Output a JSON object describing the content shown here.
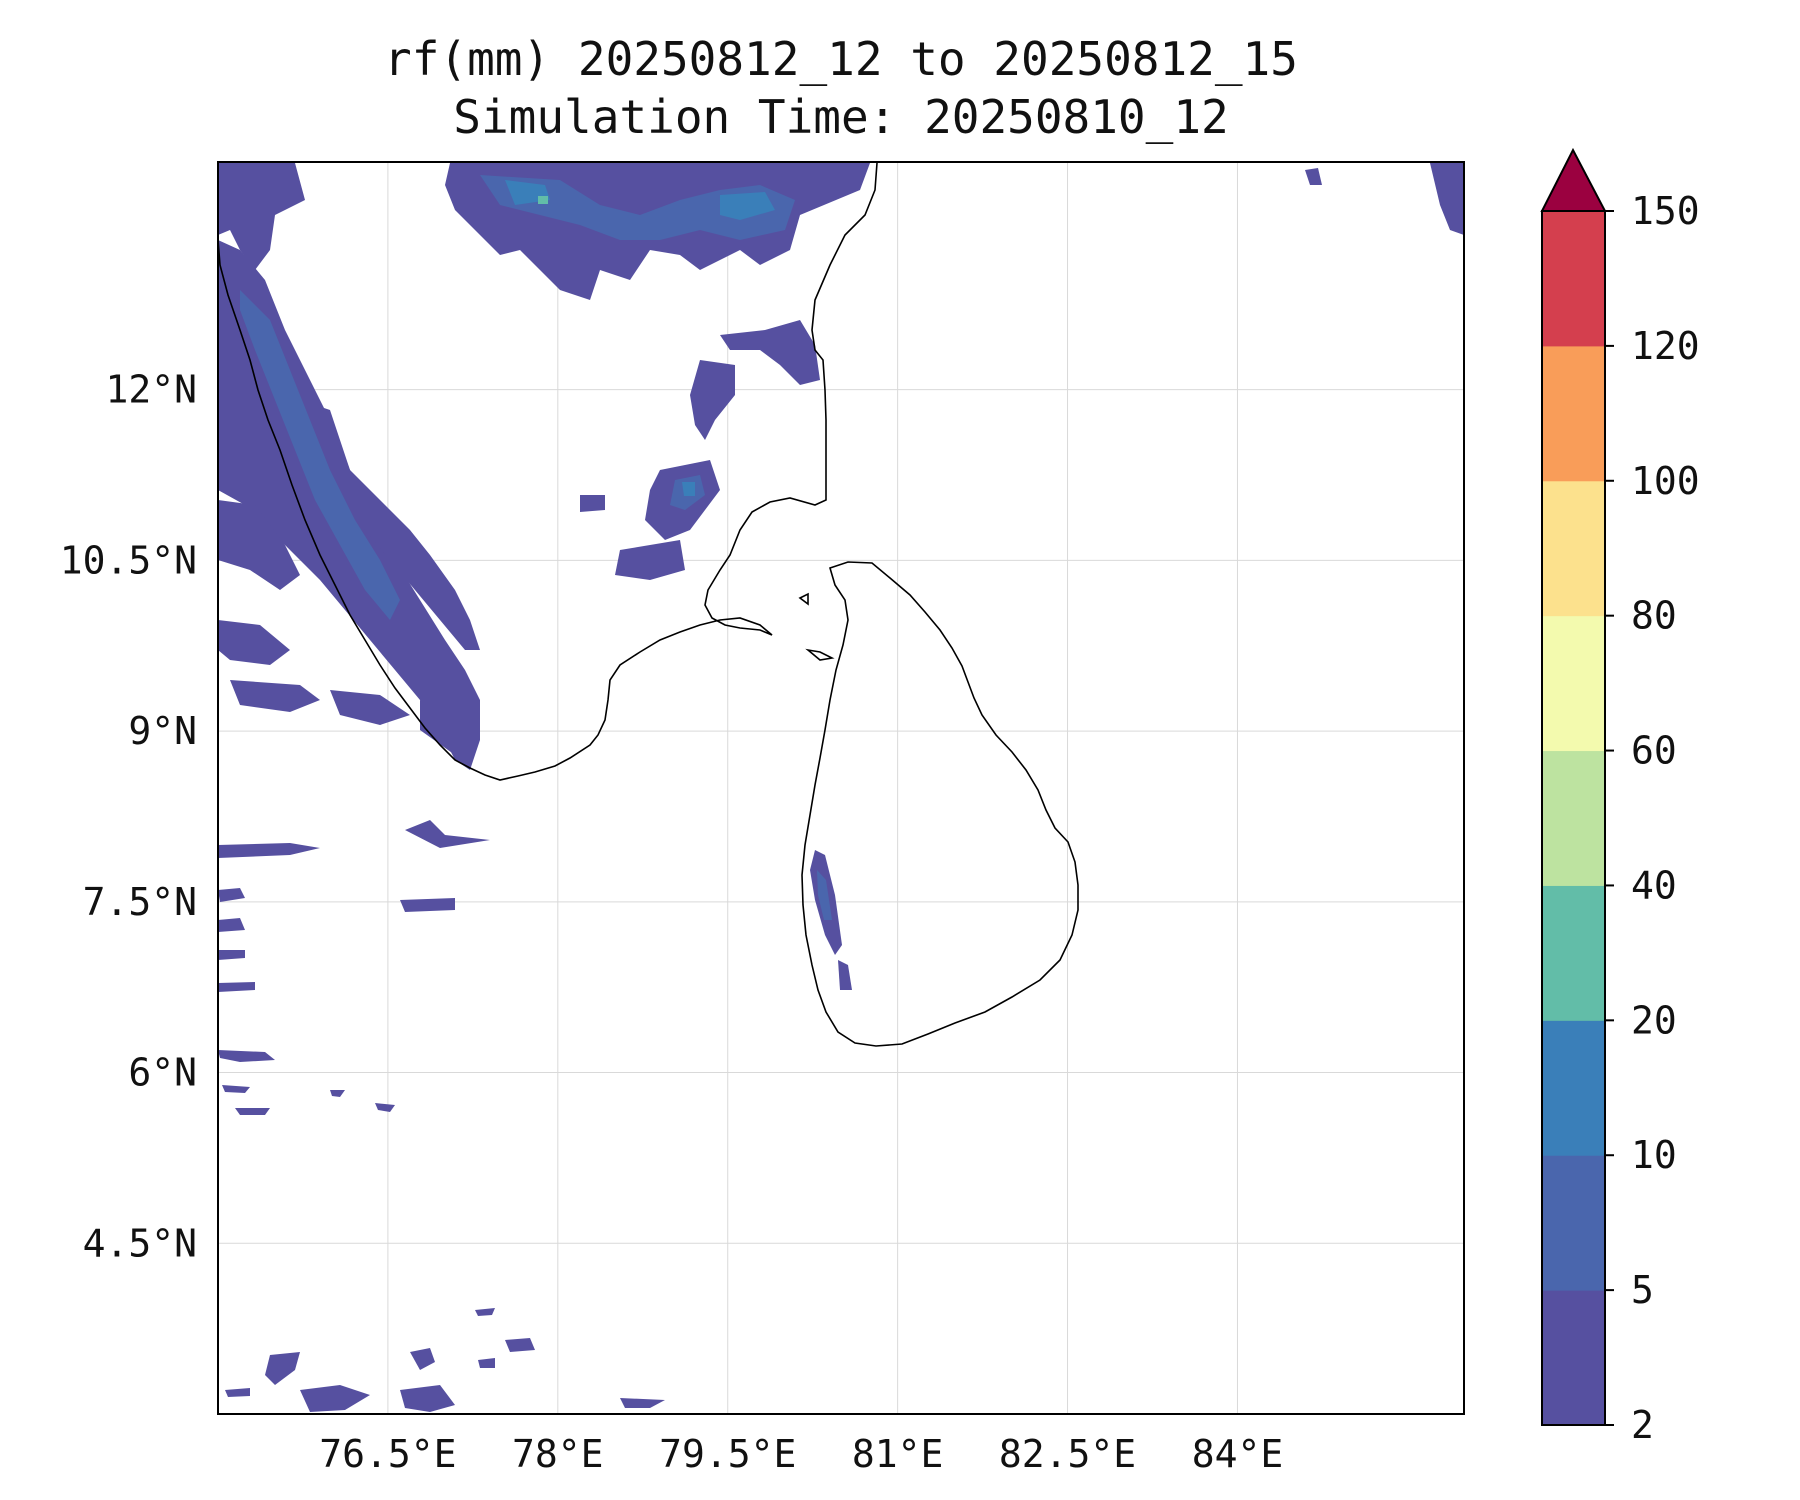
{
  "title": {
    "line1": "rf(mm) 20250812_12 to 20250812_15",
    "line2": "Simulation Time: 20250810_12"
  },
  "map": {
    "lon_range": [
      75.0,
      86.0
    ],
    "lat_range": [
      3.0,
      14.0
    ],
    "x_ticks": [
      {
        "value": 76.5,
        "label": "76.5°E"
      },
      {
        "value": 78.0,
        "label": "78°E"
      },
      {
        "value": 79.5,
        "label": "79.5°E"
      },
      {
        "value": 81.0,
        "label": "81°E"
      },
      {
        "value": 82.5,
        "label": "82.5°E"
      },
      {
        "value": 84.0,
        "label": "84°E"
      }
    ],
    "y_ticks": [
      {
        "value": 12.0,
        "label": "12°N"
      },
      {
        "value": 10.5,
        "label": "10.5°N"
      },
      {
        "value": 9.0,
        "label": "9°N"
      },
      {
        "value": 7.5,
        "label": "7.5°N"
      },
      {
        "value": 6.0,
        "label": "6°N"
      },
      {
        "value": 4.5,
        "label": "4.5°N"
      }
    ],
    "gridlines": true
  },
  "colorbar": {
    "levels": [
      2,
      5,
      10,
      20,
      40,
      60,
      80,
      100,
      120,
      150
    ],
    "tick_labels": [
      "2",
      "5",
      "10",
      "20",
      "40",
      "60",
      "80",
      "100",
      "120",
      "150"
    ],
    "colors": [
      "#5650a0",
      "#4a66ad",
      "#3a7fb9",
      "#62bda8",
      "#bde3a0",
      "#f3faae",
      "#fce18d",
      "#f99d59",
      "#d43f4e"
    ],
    "extend_color": "#9b0140",
    "extend": "max"
  },
  "rain_color_light": "#5650a0",
  "rain_color_mid": "#4a66ad",
  "rain_color_heavy": "#3a7fb9",
  "coast_color": "#000000"
}
